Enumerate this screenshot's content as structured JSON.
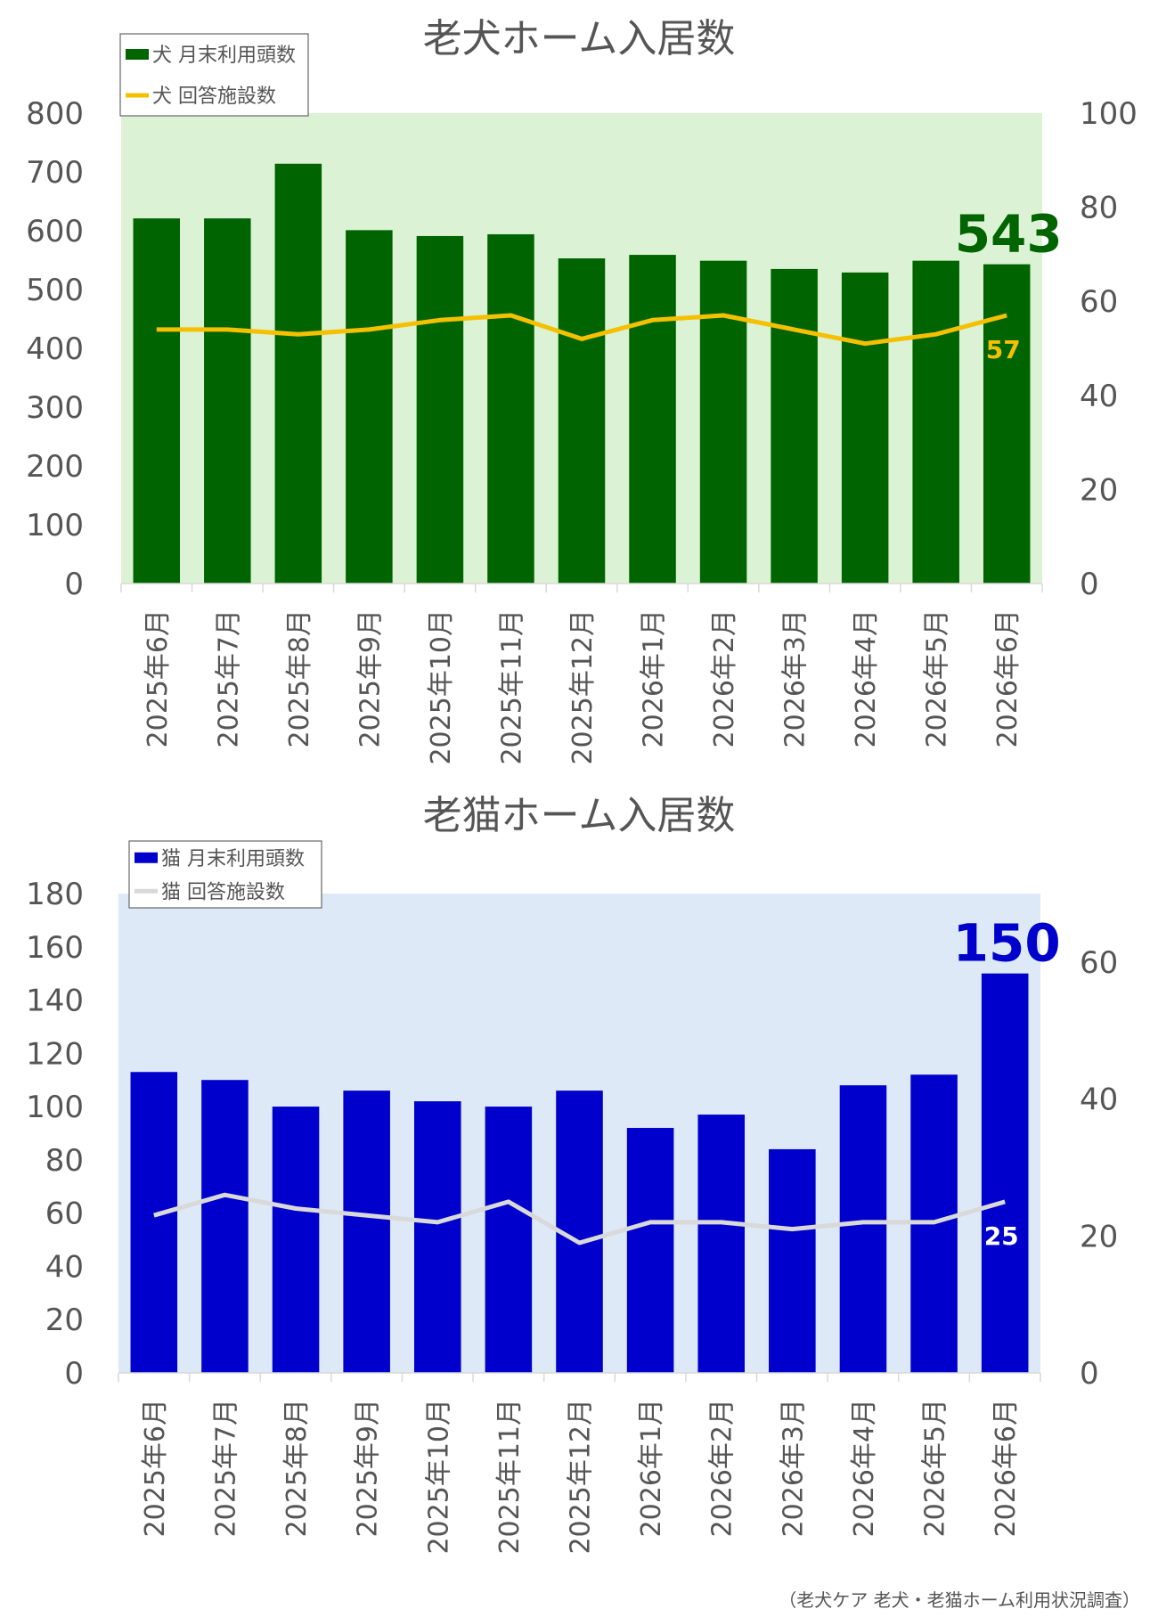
{
  "chart_data": [
    {
      "type": "bar",
      "title": "老犬ホーム入居数",
      "categories": [
        "2025年6月",
        "2025年7月",
        "2025年8月",
        "2025年9月",
        "2025年10月",
        "2025年11月",
        "2025年12月",
        "2026年1月",
        "2026年2月",
        "2026年3月",
        "2026年4月",
        "2026年5月",
        "2026年6月"
      ],
      "series": [
        {
          "name": "犬 月末利用頭数",
          "type": "bar",
          "axis": "left",
          "color": "#006400",
          "values": [
            621,
            621,
            714,
            601,
            591,
            594,
            553,
            559,
            549,
            535,
            529,
            549,
            543
          ]
        },
        {
          "name": "犬 回答施設数",
          "type": "line",
          "axis": "right",
          "color": "#f5c000",
          "values": [
            54,
            54,
            53,
            54,
            56,
            57,
            52,
            56,
            57,
            54,
            51,
            53,
            57
          ]
        }
      ],
      "ylim_left": [
        0,
        800
      ],
      "yticks_left": [
        0,
        100,
        200,
        300,
        400,
        500,
        600,
        700,
        800
      ],
      "ylim_right": [
        0,
        100
      ],
      "yticks_right": [
        0,
        20,
        40,
        60,
        80,
        100
      ],
      "annotations": {
        "bar_last": "543",
        "line_last": "57"
      },
      "plot_bg": "#dcf2d4",
      "legend_position": "top-left",
      "grid": false
    },
    {
      "type": "bar",
      "title": "老猫ホーム入居数",
      "categories": [
        "2025年6月",
        "2025年7月",
        "2025年8月",
        "2025年9月",
        "2025年10月",
        "2025年11月",
        "2025年12月",
        "2026年1月",
        "2026年2月",
        "2026年3月",
        "2026年4月",
        "2026年5月",
        "2026年6月"
      ],
      "series": [
        {
          "name": "猫 月末利用頭数",
          "type": "bar",
          "axis": "left",
          "color": "#0000cc",
          "values": [
            113,
            110,
            100,
            106,
            102,
            100,
            106,
            92,
            97,
            84,
            108,
            112,
            150
          ]
        },
        {
          "name": "猫 回答施設数",
          "type": "line",
          "axis": "right",
          "color": "#d9d9d9",
          "values": [
            23,
            26,
            24,
            23,
            22,
            25,
            19,
            22,
            22,
            21,
            22,
            22,
            25
          ]
        }
      ],
      "ylim_left": [
        0,
        180
      ],
      "yticks_left": [
        0,
        20,
        40,
        60,
        80,
        100,
        120,
        140,
        160,
        180
      ],
      "ylim_right": [
        0,
        70
      ],
      "yticks_right": [
        0,
        20,
        40,
        60
      ],
      "annotations": {
        "bar_last": "150",
        "line_last": "25"
      },
      "plot_bg": "#dde9f7",
      "legend_position": "top-left",
      "grid": false
    }
  ],
  "footer": "（老犬ケア 老犬・老猫ホーム利用状況調査）"
}
